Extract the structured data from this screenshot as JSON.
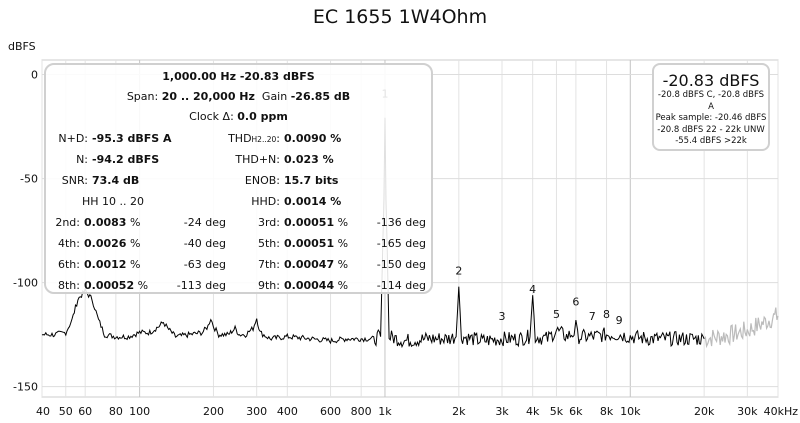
{
  "title": "EC 1655 1W4Ohm",
  "chart_data": {
    "type": "line",
    "title": "EC 1655 1W4Ohm",
    "ylabel": "dBFS",
    "xlabel": "",
    "xscale": "log",
    "xlim": [
      40,
      40000
    ],
    "ylim": [
      -155,
      7
    ],
    "grid": true,
    "x_ticks": [
      {
        "v": 40,
        "label": "40"
      },
      {
        "v": 50,
        "label": "50"
      },
      {
        "v": 60,
        "label": "60"
      },
      {
        "v": 80,
        "label": "80"
      },
      {
        "v": 100,
        "label": "100"
      },
      {
        "v": 200,
        "label": "200"
      },
      {
        "v": 300,
        "label": "300"
      },
      {
        "v": 400,
        "label": "400"
      },
      {
        "v": 600,
        "label": "600"
      },
      {
        "v": 800,
        "label": "800"
      },
      {
        "v": 1000,
        "label": "1k"
      },
      {
        "v": 2000,
        "label": "2k"
      },
      {
        "v": 3000,
        "label": "3k"
      },
      {
        "v": 4000,
        "label": "4k"
      },
      {
        "v": 5000,
        "label": "5k"
      },
      {
        "v": 6000,
        "label": "6k"
      },
      {
        "v": 8000,
        "label": "8k"
      },
      {
        "v": 10000,
        "label": "10k"
      },
      {
        "v": 20000,
        "label": "20k"
      },
      {
        "v": 30000,
        "label": "30k"
      },
      {
        "v": 40000,
        "label": "40kHz"
      }
    ],
    "y_ticks": [
      {
        "v": 0,
        "label": "0"
      },
      {
        "v": -50,
        "label": "-50"
      },
      {
        "v": -100,
        "label": "-100"
      },
      {
        "v": -150,
        "label": "-150"
      }
    ],
    "spectrum": [
      [
        40,
        -125
      ],
      [
        45,
        -125
      ],
      [
        50,
        -124
      ],
      [
        53,
        -118
      ],
      [
        56,
        -108
      ],
      [
        60,
        -104
      ],
      [
        64,
        -108
      ],
      [
        68,
        -118
      ],
      [
        72,
        -125
      ],
      [
        80,
        -126
      ],
      [
        90,
        -126
      ],
      [
        100,
        -124
      ],
      [
        110,
        -124
      ],
      [
        120,
        -121
      ],
      [
        125,
        -119
      ],
      [
        130,
        -122
      ],
      [
        140,
        -126
      ],
      [
        160,
        -125
      ],
      [
        180,
        -124
      ],
      [
        190,
        -121
      ],
      [
        195,
        -117
      ],
      [
        200,
        -121
      ],
      [
        210,
        -125
      ],
      [
        230,
        -125
      ],
      [
        245,
        -122
      ],
      [
        255,
        -125
      ],
      [
        270,
        -125
      ],
      [
        290,
        -122
      ],
      [
        300,
        -117
      ],
      [
        310,
        -124
      ],
      [
        340,
        -127
      ],
      [
        400,
        -126
      ],
      [
        500,
        -127
      ],
      [
        600,
        -128
      ],
      [
        700,
        -127
      ],
      [
        800,
        -127
      ],
      [
        900,
        -127
      ],
      [
        960,
        -126
      ],
      [
        990,
        -60
      ],
      [
        1000,
        -20.8
      ],
      [
        1010,
        -60
      ],
      [
        1040,
        -126
      ],
      [
        1200,
        -128
      ],
      [
        1500,
        -127
      ],
      [
        1800,
        -127
      ],
      [
        1950,
        -126
      ],
      [
        2000,
        -102
      ],
      [
        2050,
        -126
      ],
      [
        2500,
        -128
      ],
      [
        3000,
        -127
      ],
      [
        3500,
        -127
      ],
      [
        3900,
        -126
      ],
      [
        4000,
        -106
      ],
      [
        4100,
        -126
      ],
      [
        4600,
        -127
      ],
      [
        5000,
        -123
      ],
      [
        5500,
        -126
      ],
      [
        5900,
        -124
      ],
      [
        6000,
        -121
      ],
      [
        6100,
        -126
      ],
      [
        7000,
        -126
      ],
      [
        8000,
        -125
      ],
      [
        9000,
        -125
      ],
      [
        10000,
        -126
      ],
      [
        12000,
        -127
      ],
      [
        15000,
        -127
      ],
      [
        20000,
        -127
      ]
    ],
    "spectrum_unweighted": [
      [
        20000,
        -127
      ],
      [
        23000,
        -126
      ],
      [
        26000,
        -125
      ],
      [
        30000,
        -123
      ],
      [
        34000,
        -120
      ],
      [
        38000,
        -117
      ],
      [
        40000,
        -116
      ]
    ],
    "harmonic_labels": [
      {
        "n": "1",
        "x": 1000,
        "y": -11
      },
      {
        "n": "2",
        "x": 2000,
        "y": -96
      },
      {
        "n": "3",
        "x": 3000,
        "y": -118
      },
      {
        "n": "4",
        "x": 4000,
        "y": -105
      },
      {
        "n": "5",
        "x": 5000,
        "y": -117
      },
      {
        "n": "6",
        "x": 6000,
        "y": -111
      },
      {
        "n": "7",
        "x": 7000,
        "y": -118
      },
      {
        "n": "8",
        "x": 8000,
        "y": -117
      },
      {
        "n": "9",
        "x": 9000,
        "y": -120
      }
    ],
    "line_color": "#000000",
    "line_color_unweighted": "#bbbbbb"
  },
  "panel": {
    "line1": "1,000.00 Hz  -20.83 dBFS",
    "span_label": "Span: ",
    "span_value": "20 .. 20,000 Hz",
    "gain_label": "Gain ",
    "gain_value": "-26.85 dB",
    "clock_label": "Clock Δ: ",
    "clock_value": "0.0 ppm",
    "nd_label": "N+D:",
    "nd_value": "-95.3 dBFS A",
    "thd_label": "THD",
    "thd_sub": "H2..20",
    "thd_colon": ":",
    "thd_value": "0.0090 %",
    "n_label": "N:",
    "n_value": "-94.2 dBFS",
    "thdn_label": "THD+N:",
    "thdn_value": "0.023 %",
    "snr_label": "SNR:",
    "snr_value": "73.4 dB",
    "enob_label": "ENOB:",
    "enob_value": "15.7 bits",
    "hh_label": "HH 10 .. 20",
    "hhd_label": "HHD:",
    "hhd_value": "0.0014 %",
    "harmonics": [
      {
        "l1": "2nd:",
        "v1": "0.0083",
        "u1": " %",
        "d1": "-24 deg",
        "l2": "3rd:",
        "v2": "0.00051",
        "u2": " %",
        "d2": "-136 deg"
      },
      {
        "l1": "4th:",
        "v1": "0.0026",
        "u1": " %",
        "d1": "-40 deg",
        "l2": "5th:",
        "v2": "0.00051",
        "u2": " %",
        "d2": "-165 deg"
      },
      {
        "l1": "6th:",
        "v1": "0.0012",
        "u1": " %",
        "d1": "-63 deg",
        "l2": "7th:",
        "v2": "0.00047",
        "u2": " %",
        "d2": "-150 deg"
      },
      {
        "l1": "8th:",
        "v1": "0.00052",
        "u1": " %",
        "d1": "-113 deg",
        "l2": "9th:",
        "v2": "0.00044",
        "u2": " %",
        "d2": "-114 deg"
      }
    ]
  },
  "peak_box": {
    "big": "-20.83 dBFS",
    "l1": "-20.8 dBFS C, -20.8 dBFS A",
    "l2": "Peak sample: -20.46 dBFS",
    "l3": "-20.8 dBFS 22 - 22k UNW",
    "l4": "-55.4 dBFS >22k"
  }
}
